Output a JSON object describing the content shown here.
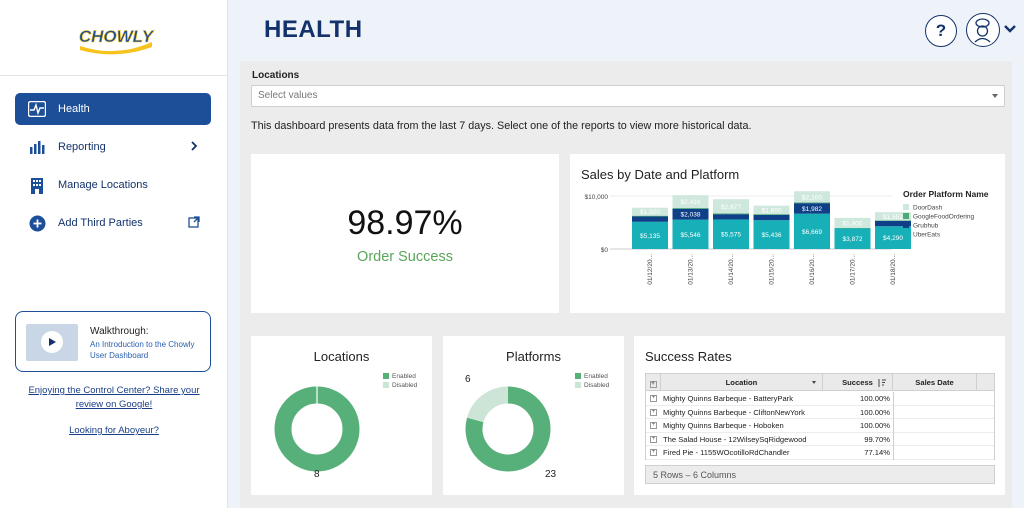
{
  "brand": {
    "logo_text": "CHOWLY"
  },
  "sidebar": {
    "items": [
      {
        "label": "Health",
        "icon": "pulse-icon"
      },
      {
        "label": "Reporting",
        "icon": "bar-chart-icon"
      },
      {
        "label": "Manage Locations",
        "icon": "building-icon"
      },
      {
        "label": "Add Third Parties",
        "icon": "plus-circle-icon"
      }
    ],
    "walkthrough": {
      "title": "Walkthrough:",
      "subtitle": "An Introduction to the Chowly User Dashboard"
    },
    "share_link": "Enjoying the Control Center? Share your review on Google!",
    "aboyeur_link": "Looking for Aboyeur?"
  },
  "header": {
    "title": "HEALTH",
    "help_label": "?"
  },
  "filters": {
    "locations_label": "Locations",
    "locations_placeholder": "Select values"
  },
  "description": "This dashboard presents data from the last 7 days. Select one of the reports to view more historical data.",
  "order_success": {
    "value": "98.97%",
    "label": "Order Success"
  },
  "sales_chart": {
    "title": "Sales by Date and Platform",
    "legend_title": "Order Platform Name",
    "y_ticks": [
      "$10,000",
      "$0"
    ]
  },
  "locations_card": {
    "title": "Locations",
    "legend": [
      "Enabled",
      "Disabled"
    ],
    "enabled_count": "8"
  },
  "platforms_card": {
    "title": "Platforms",
    "legend": [
      "Enabled",
      "Disabled"
    ],
    "enabled_count": "23",
    "disabled_count": "6"
  },
  "success_rates": {
    "title": "Success Rates",
    "columns": [
      "Location",
      "Success",
      "Sales Date"
    ],
    "rows": [
      {
        "location": "Mighty Quinns Barbeque - BatteryPark",
        "success": "100.00%"
      },
      {
        "location": "Mighty Quinns Barbeque - CliftonNewYork",
        "success": "100.00%"
      },
      {
        "location": "Mighty Quinns Barbeque - Hoboken",
        "success": "100.00%"
      },
      {
        "location": "The Salad House - 12WilseySqRidgewood",
        "success": "99.70%"
      },
      {
        "location": "Fired Pie - 1155WOcotilloRdChandler",
        "success": "77.14%"
      }
    ],
    "footer": "5 Rows – 6 Columns"
  },
  "colors": {
    "navy": "#1d4f98",
    "doordash": "#cfe8dd",
    "googlefood": "#4bab77",
    "grubhub": "#0f3f86",
    "ubereats": "#17b0b8"
  },
  "chart_data": [
    {
      "type": "bar",
      "stacked": true,
      "title": "Sales by Date and Platform",
      "categories": [
        "01/12/20...",
        "01/13/20...",
        "01/14/20...",
        "01/15/20...",
        "01/16/20...",
        "01/17/20...",
        "01/18/20..."
      ],
      "series": [
        {
          "name": "UberEats",
          "values": [
            5135,
            5546,
            5575,
            5436,
            6669,
            3872,
            4290
          ],
          "labels": [
            "$5,135",
            "$5,546",
            "$5,575",
            "$5,436",
            "$6,669",
            "$3,872",
            "$4,290"
          ]
        },
        {
          "name": "Grubhub",
          "values": [
            1000,
            2038,
            1000,
            1000,
            1982,
            0,
            1000
          ],
          "labels": [
            "",
            "$2,038",
            "",
            "",
            "$1,982",
            "",
            ""
          ]
        },
        {
          "name": "GoogleFoodOrdering",
          "values": [
            150,
            150,
            150,
            150,
            150,
            100,
            100
          ],
          "labels": [
            "",
            "",
            "",
            "",
            "",
            "",
            ""
          ]
        },
        {
          "name": "DoorDash",
          "values": [
            1500,
            2416,
            2677,
            1600,
            2100,
            1900,
            1552
          ],
          "labels": [
            "$1,500",
            "$2,416",
            "$2,677",
            "$1,600",
            "$2,100",
            "$1,900",
            "$1,552"
          ]
        }
      ],
      "legend_title": "Order Platform Name",
      "legend_order": [
        "DoorDash",
        "GoogleFoodOrdering",
        "Grubhub",
        "UberEats"
      ],
      "ylim": [
        0,
        14500
      ],
      "y_ticks": [
        0,
        10000
      ],
      "legend_position": "right"
    },
    {
      "type": "pie",
      "title": "Locations",
      "categories": [
        "Enabled",
        "Disabled"
      ],
      "values": [
        8,
        0
      ]
    },
    {
      "type": "pie",
      "title": "Platforms",
      "categories": [
        "Enabled",
        "Disabled"
      ],
      "values": [
        23,
        6
      ]
    }
  ]
}
